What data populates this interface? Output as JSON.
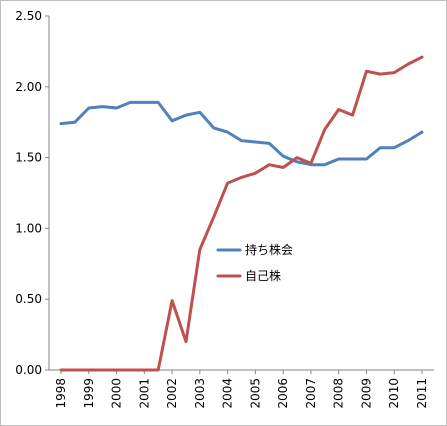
{
  "chart_data": {
    "type": "line",
    "title": "",
    "xlabel": "",
    "ylabel": "",
    "x": [
      1998,
      1998.5,
      1999,
      1999.5,
      2000,
      2000.5,
      2001,
      2001.5,
      2002,
      2002.5,
      2003,
      2003.5,
      2004,
      2004.5,
      2005,
      2005.5,
      2006,
      2006.5,
      2007,
      2007.5,
      2008,
      2008.5,
      2009,
      2009.5,
      2010,
      2010.5,
      2011
    ],
    "x_ticks": [
      "1998",
      "1999",
      "2000",
      "2001",
      "2002",
      "2003",
      "2004",
      "2005",
      "2006",
      "2007",
      "2008",
      "2009",
      "2010",
      "2011"
    ],
    "y_ticks": [
      "0.00",
      "0.50",
      "1.00",
      "1.50",
      "2.00",
      "2.50"
    ],
    "ylim": [
      0,
      2.5
    ],
    "grid": false,
    "legend_position": "center-right",
    "series": [
      {
        "name": "持ち株会",
        "color": "#4F81BD",
        "values": [
          1.74,
          1.75,
          1.85,
          1.86,
          1.85,
          1.89,
          1.89,
          1.89,
          1.76,
          1.8,
          1.82,
          1.71,
          1.68,
          1.62,
          1.61,
          1.6,
          1.51,
          1.47,
          1.45,
          1.45,
          1.49,
          1.49,
          1.49,
          1.57,
          1.57,
          1.62,
          1.68
        ]
      },
      {
        "name": "自己株",
        "color": "#C0504D",
        "values": [
          0.0,
          0.0,
          0.0,
          0.0,
          0.0,
          0.0,
          0.0,
          0.0,
          0.49,
          0.2,
          0.85,
          1.08,
          1.32,
          1.36,
          1.39,
          1.45,
          1.43,
          1.5,
          1.46,
          1.7,
          1.84,
          1.8,
          2.11,
          2.09,
          2.1,
          2.16,
          2.21
        ]
      }
    ]
  }
}
